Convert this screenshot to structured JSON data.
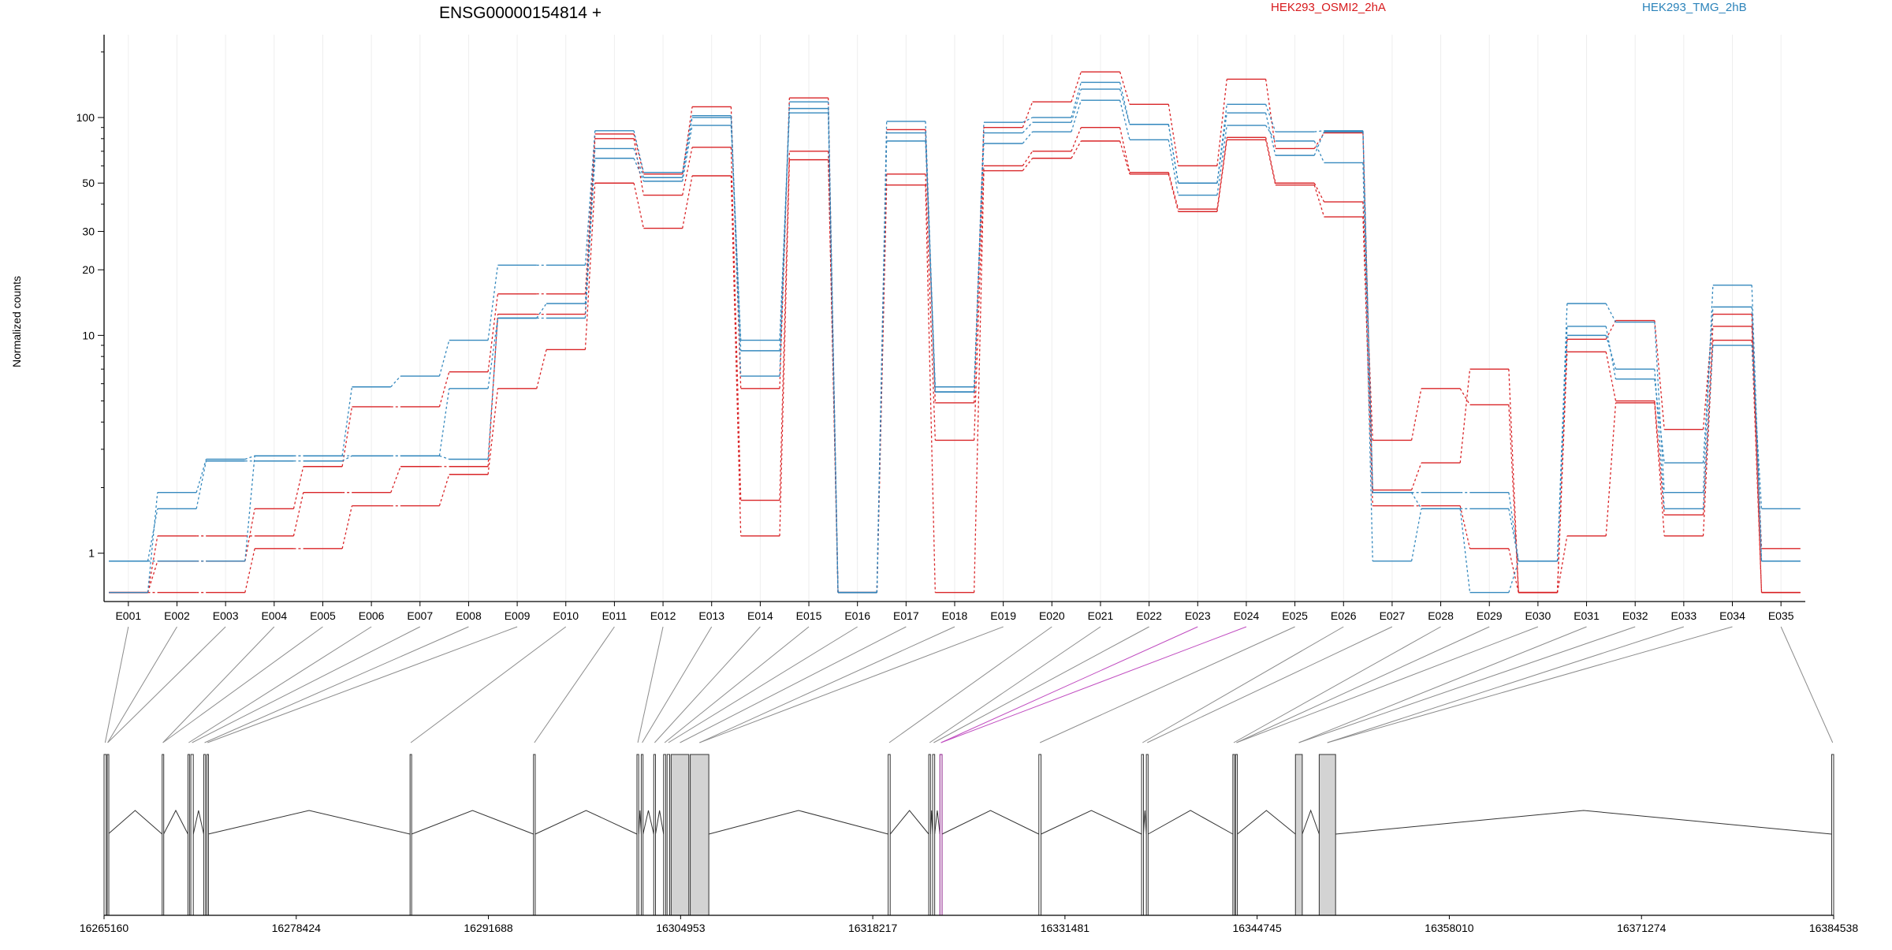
{
  "chart_data": {
    "type": "line",
    "title": "ENSG00000154814 +",
    "ylabel": "Normalized counts",
    "y_scale": "log",
    "ylim": [
      0.6,
      240
    ],
    "y_ticks": [
      1,
      10,
      20,
      30,
      50,
      100
    ],
    "legend": [
      {
        "name": "HEK293_OSMI2_2hA",
        "color": "#d7191c"
      },
      {
        "name": "HEK293_TMG_2hB",
        "color": "#2b83ba"
      }
    ],
    "categories": [
      "E001",
      "E002",
      "E003",
      "E004",
      "E005",
      "E006",
      "E007",
      "E008",
      "E009",
      "E010",
      "E011",
      "E012",
      "E013",
      "E014",
      "E015",
      "E016",
      "E017",
      "E018",
      "E019",
      "E020",
      "E021",
      "E022",
      "E023",
      "E024",
      "E025",
      "E026",
      "E027",
      "E028",
      "E029",
      "E030",
      "E031",
      "E032",
      "E033",
      "E034",
      "E035"
    ],
    "series": [
      {
        "group": "HEK293_OSMI2_2hA",
        "color": "#d7191c",
        "values": [
          0.66,
          0.66,
          0.66,
          1.05,
          1.05,
          1.65,
          1.65,
          2.3,
          5.7,
          8.6,
          50,
          31,
          54,
          1.2,
          64,
          0.66,
          49,
          0.66,
          57,
          65,
          78,
          55,
          37,
          79,
          49,
          35,
          1.65,
          1.65,
          1.05,
          0.66,
          1.2,
          4.9,
          1.2,
          9.5,
          0.66
        ]
      },
      {
        "group": "HEK293_OSMI2_2hA",
        "color": "#d7191c",
        "values": [
          0.66,
          1.2,
          1.2,
          1.2,
          1.9,
          1.9,
          2.5,
          2.5,
          12.5,
          12.5,
          80,
          44,
          73,
          1.75,
          70,
          0.66,
          55,
          3.3,
          60,
          70,
          90,
          56,
          38,
          81,
          50,
          41,
          3.3,
          5.7,
          4.8,
          0.66,
          8.4,
          5.0,
          1.5,
          11,
          1.05
        ]
      },
      {
        "group": "HEK293_OSMI2_2hA",
        "color": "#d7191c",
        "values": [
          0.66,
          0.92,
          0.92,
          1.6,
          2.5,
          4.7,
          4.7,
          6.8,
          15.5,
          15.5,
          84,
          55,
          112,
          5.7,
          123,
          0.66,
          88,
          4.9,
          90,
          118,
          162,
          115,
          60,
          150,
          72,
          85,
          1.95,
          2.6,
          7.0,
          0.66,
          9.6,
          11.7,
          3.7,
          12.5,
          0.66
        ]
      },
      {
        "group": "HEK293_TMG_2hB",
        "color": "#2b83ba",
        "values": [
          0.92,
          0.92,
          0.92,
          2.8,
          2.8,
          2.8,
          2.8,
          5.7,
          12,
          12,
          65,
          51,
          92,
          9.5,
          105,
          0.66,
          78,
          5.8,
          76,
          86,
          120,
          79,
          44,
          92,
          78,
          62,
          0.92,
          1.6,
          0.66,
          0.92,
          10,
          7.0,
          1.6,
          9.0,
          1.6
        ]
      },
      {
        "group": "HEK293_TMG_2hB",
        "color": "#2b83ba",
        "values": [
          0.92,
          1.6,
          2.65,
          2.65,
          2.65,
          2.8,
          2.8,
          2.7,
          12,
          14,
          72,
          53,
          100,
          8.5,
          110,
          0.66,
          85,
          5.5,
          85,
          95,
          135,
          93,
          50,
          105,
          67,
          86,
          1.9,
          1.6,
          1.6,
          0.92,
          11,
          6.3,
          2.6,
          13.5,
          0.92
        ]
      },
      {
        "group": "HEK293_TMG_2hB",
        "color": "#2b83ba",
        "values": [
          0.66,
          1.9,
          2.7,
          2.8,
          2.8,
          5.8,
          6.5,
          9.5,
          21,
          21,
          87,
          56,
          102,
          6.5,
          118,
          0.66,
          96,
          5.5,
          95,
          100,
          145,
          93,
          50,
          115,
          86,
          87,
          1.9,
          1.9,
          1.9,
          0.92,
          14,
          11.5,
          1.9,
          17,
          0.92
        ]
      }
    ],
    "genome_axis": {
      "ticks": [
        "16265160",
        "16278424",
        "16291688",
        "16304953",
        "16318217",
        "16331481",
        "16344745",
        "16358010",
        "16371274",
        "16384538"
      ],
      "start": 16265160,
      "end": 16384538
    },
    "exons": [
      {
        "start": 16265160,
        "end": 16265310
      },
      {
        "start": 16265380,
        "end": 16265440
      },
      {
        "start": 16269170,
        "end": 16269270
      },
      {
        "start": 16270950,
        "end": 16271050
      },
      {
        "start": 16271150,
        "end": 16271320
      },
      {
        "start": 16272040,
        "end": 16272160
      },
      {
        "start": 16272260,
        "end": 16272340
      },
      {
        "start": 16286280,
        "end": 16286380
      },
      {
        "start": 16294800,
        "end": 16294920
      },
      {
        "start": 16301940,
        "end": 16302060
      },
      {
        "start": 16302240,
        "end": 16302360
      },
      {
        "start": 16303100,
        "end": 16303220
      },
      {
        "start": 16303780,
        "end": 16303920
      },
      {
        "start": 16304020,
        "end": 16304200
      },
      {
        "start": 16304300,
        "end": 16305520,
        "coding": true
      },
      {
        "start": 16305620,
        "end": 16306900,
        "coding": true
      },
      {
        "start": 16319280,
        "end": 16319420
      },
      {
        "start": 16322080,
        "end": 16322200
      },
      {
        "start": 16322350,
        "end": 16322490
      },
      {
        "start": 16322850,
        "end": 16323000,
        "highlight": true
      },
      {
        "start": 16329680,
        "end": 16329830
      },
      {
        "start": 16336770,
        "end": 16336900
      },
      {
        "start": 16337100,
        "end": 16337220
      },
      {
        "start": 16343070,
        "end": 16343190
      },
      {
        "start": 16343260,
        "end": 16343380
      },
      {
        "start": 16347390,
        "end": 16347860,
        "coding": true
      },
      {
        "start": 16349030,
        "end": 16350160,
        "coding": true
      },
      {
        "start": 16384400,
        "end": 16384538
      }
    ],
    "exon_bin_map": [
      0,
      1,
      1,
      2,
      2,
      3,
      4,
      5,
      6,
      7,
      8,
      9,
      10,
      11,
      12,
      13,
      14,
      15,
      15,
      16,
      17,
      18,
      19,
      19,
      20,
      21,
      22,
      23,
      24,
      24,
      25,
      25,
      26,
      26,
      27
    ]
  }
}
